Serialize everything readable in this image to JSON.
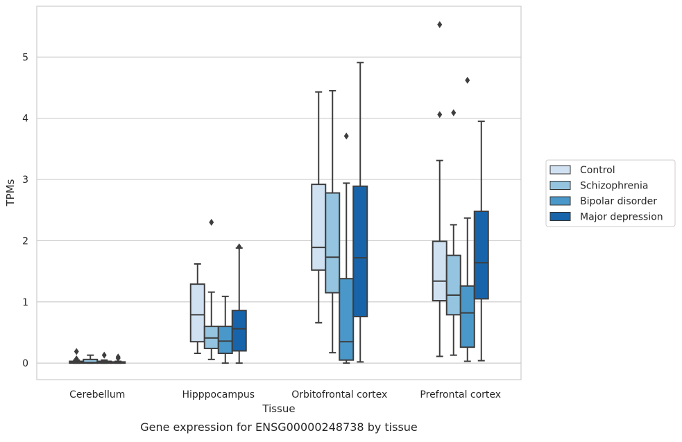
{
  "chart_data": {
    "type": "box",
    "title": "Gene expression for ENSG00000248738 by tissue",
    "xlabel": "Tissue",
    "ylabel": "TPMs",
    "categories": [
      "Cerebellum",
      "Hipppocampus",
      "Orbitofrontal cortex",
      "Prefrontal cortex"
    ],
    "ylim": [
      -0.27,
      5.83
    ],
    "yticks": [
      "0",
      "1",
      "2",
      "3",
      "4",
      "5"
    ],
    "grid": true,
    "legend_position": "right",
    "series": [
      {
        "name": "Control",
        "color": "#d0e1f2",
        "boxes": [
          {
            "whislo": 0.0,
            "q1": 0.0,
            "med": 0.01,
            "q3": 0.03,
            "whishi": 0.05,
            "fliers": [
              0.07,
              0.19
            ]
          },
          {
            "whislo": 0.16,
            "q1": 0.35,
            "med": 0.79,
            "q3": 1.29,
            "whishi": 1.62,
            "fliers": []
          },
          {
            "whislo": 0.66,
            "q1": 1.52,
            "med": 1.89,
            "q3": 2.92,
            "whishi": 4.43,
            "fliers": []
          },
          {
            "whislo": 0.11,
            "q1": 1.02,
            "med": 1.34,
            "q3": 1.99,
            "whishi": 3.31,
            "fliers": [
              4.06,
              5.53
            ]
          }
        ]
      },
      {
        "name": "Schizophrenia",
        "color": "#94c4df",
        "boxes": [
          {
            "whislo": 0.0,
            "q1": 0.0,
            "med": 0.01,
            "q3": 0.06,
            "whishi": 0.13,
            "fliers": []
          },
          {
            "whislo": 0.06,
            "q1": 0.24,
            "med": 0.41,
            "q3": 0.6,
            "whishi": 1.16,
            "fliers": [
              2.3
            ]
          },
          {
            "whislo": 0.17,
            "q1": 1.15,
            "med": 1.73,
            "q3": 2.78,
            "whishi": 4.45,
            "fliers": []
          },
          {
            "whislo": 0.13,
            "q1": 0.79,
            "med": 1.11,
            "q3": 1.76,
            "whishi": 2.26,
            "fliers": [
              4.09
            ]
          }
        ]
      },
      {
        "name": "Bipolar disorder",
        "color": "#4a98c9",
        "boxes": [
          {
            "whislo": 0.0,
            "q1": 0.0,
            "med": 0.01,
            "q3": 0.03,
            "whishi": 0.05,
            "fliers": [
              0.13
            ]
          },
          {
            "whislo": 0.0,
            "q1": 0.16,
            "med": 0.36,
            "q3": 0.6,
            "whishi": 1.09,
            "fliers": []
          },
          {
            "whislo": 0.0,
            "q1": 0.05,
            "med": 0.35,
            "q3": 1.38,
            "whishi": 2.94,
            "fliers": [
              3.71
            ]
          },
          {
            "whislo": 0.03,
            "q1": 0.26,
            "med": 0.82,
            "q3": 1.26,
            "whishi": 2.37,
            "fliers": [
              4.62
            ]
          }
        ]
      },
      {
        "name": "Major depression",
        "color": "#1764ab",
        "boxes": [
          {
            "whislo": 0.0,
            "q1": 0.0,
            "med": 0.01,
            "q3": 0.02,
            "whishi": 0.03,
            "fliers": [
              0.08,
              0.1
            ]
          },
          {
            "whislo": 0.0,
            "q1": 0.2,
            "med": 0.56,
            "q3": 0.86,
            "whishi": 1.88,
            "fliers": [
              1.9
            ]
          },
          {
            "whislo": 0.02,
            "q1": 0.76,
            "med": 1.72,
            "q3": 2.89,
            "whishi": 4.91,
            "fliers": []
          },
          {
            "whislo": 0.04,
            "q1": 1.05,
            "med": 1.64,
            "q3": 2.48,
            "whishi": 3.95,
            "fliers": []
          }
        ]
      }
    ]
  }
}
